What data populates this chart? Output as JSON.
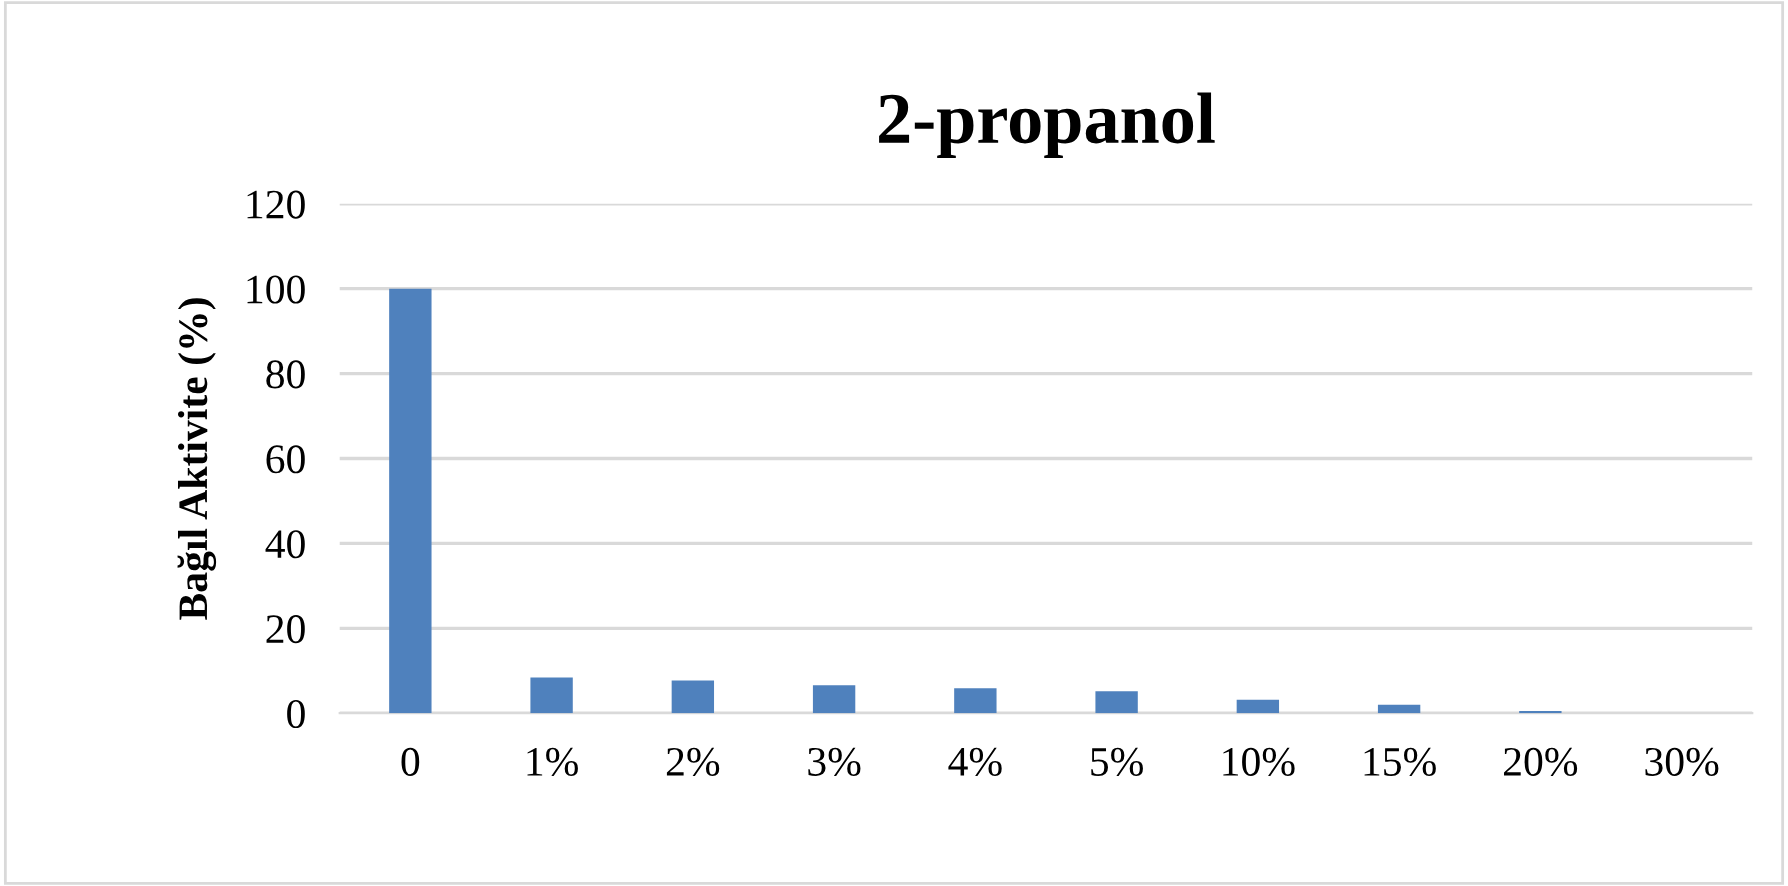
{
  "chart_data": {
    "type": "bar",
    "title": "2-propanol",
    "ylabel": "Bağıl Aktivite (%)",
    "categories": [
      "0",
      "1%",
      "2%",
      "3%",
      "4%",
      "5%",
      "10%",
      "15%",
      "20%",
      "30%"
    ],
    "values": [
      100,
      8.4,
      7.7,
      6.6,
      5.9,
      5.2,
      3.2,
      2.0,
      0.5,
      0
    ],
    "color": "#4f81bd",
    "ylim": [
      0,
      120
    ],
    "yticks": [
      0,
      20,
      40,
      60,
      80,
      100,
      120
    ],
    "grid": "y"
  }
}
